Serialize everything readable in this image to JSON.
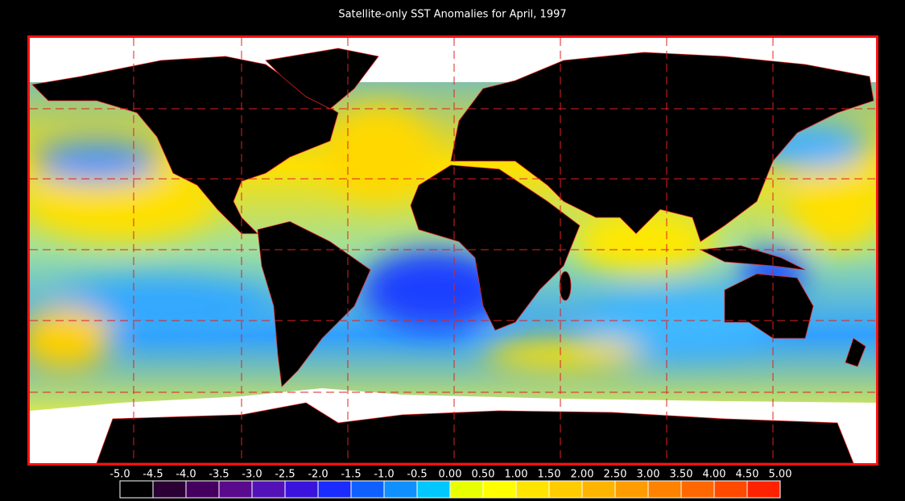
{
  "title": "Satellite-only SST Anomalies for April, 1997",
  "colorbar": {
    "labels": [
      "-5.0",
      "-4.5",
      "-4.0",
      "-3.5",
      "-3.0",
      "-2.5",
      "-2.0",
      "-1.5",
      "-1.0",
      "-0.5",
      "0.00",
      "0.50",
      "1.00",
      "1.50",
      "2.00",
      "2.50",
      "3.00",
      "3.50",
      "4.00",
      "4.50",
      "5.00"
    ],
    "colors": [
      "#000000",
      "#2a0035",
      "#45005f",
      "#5a0a8c",
      "#5212b8",
      "#3a14dc",
      "#1a2cff",
      "#1060ff",
      "#1090ff",
      "#00c8ff",
      "#e8ff00",
      "#ffff00",
      "#ffe400",
      "#ffcc00",
      "#ffb400",
      "#ff9c00",
      "#ff8200",
      "#ff6800",
      "#ff4a00",
      "#ff2200"
    ]
  }
}
